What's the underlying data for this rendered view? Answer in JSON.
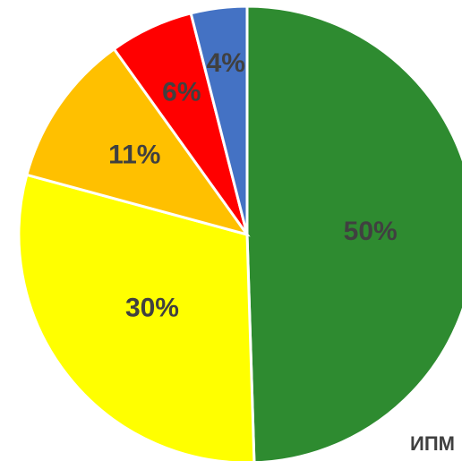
{
  "chart_data": {
    "type": "pie",
    "categories": [
      null,
      null,
      null,
      null,
      null
    ],
    "values": [
      50,
      30,
      11,
      6,
      4
    ],
    "value_labels": [
      "50%",
      "30%",
      "11%",
      "6%",
      "4%"
    ],
    "colors": [
      "#2e8b30",
      "#ffff00",
      "#ffc000",
      "#ff0000",
      "#4472c4"
    ],
    "annotation": "ИПМ"
  }
}
